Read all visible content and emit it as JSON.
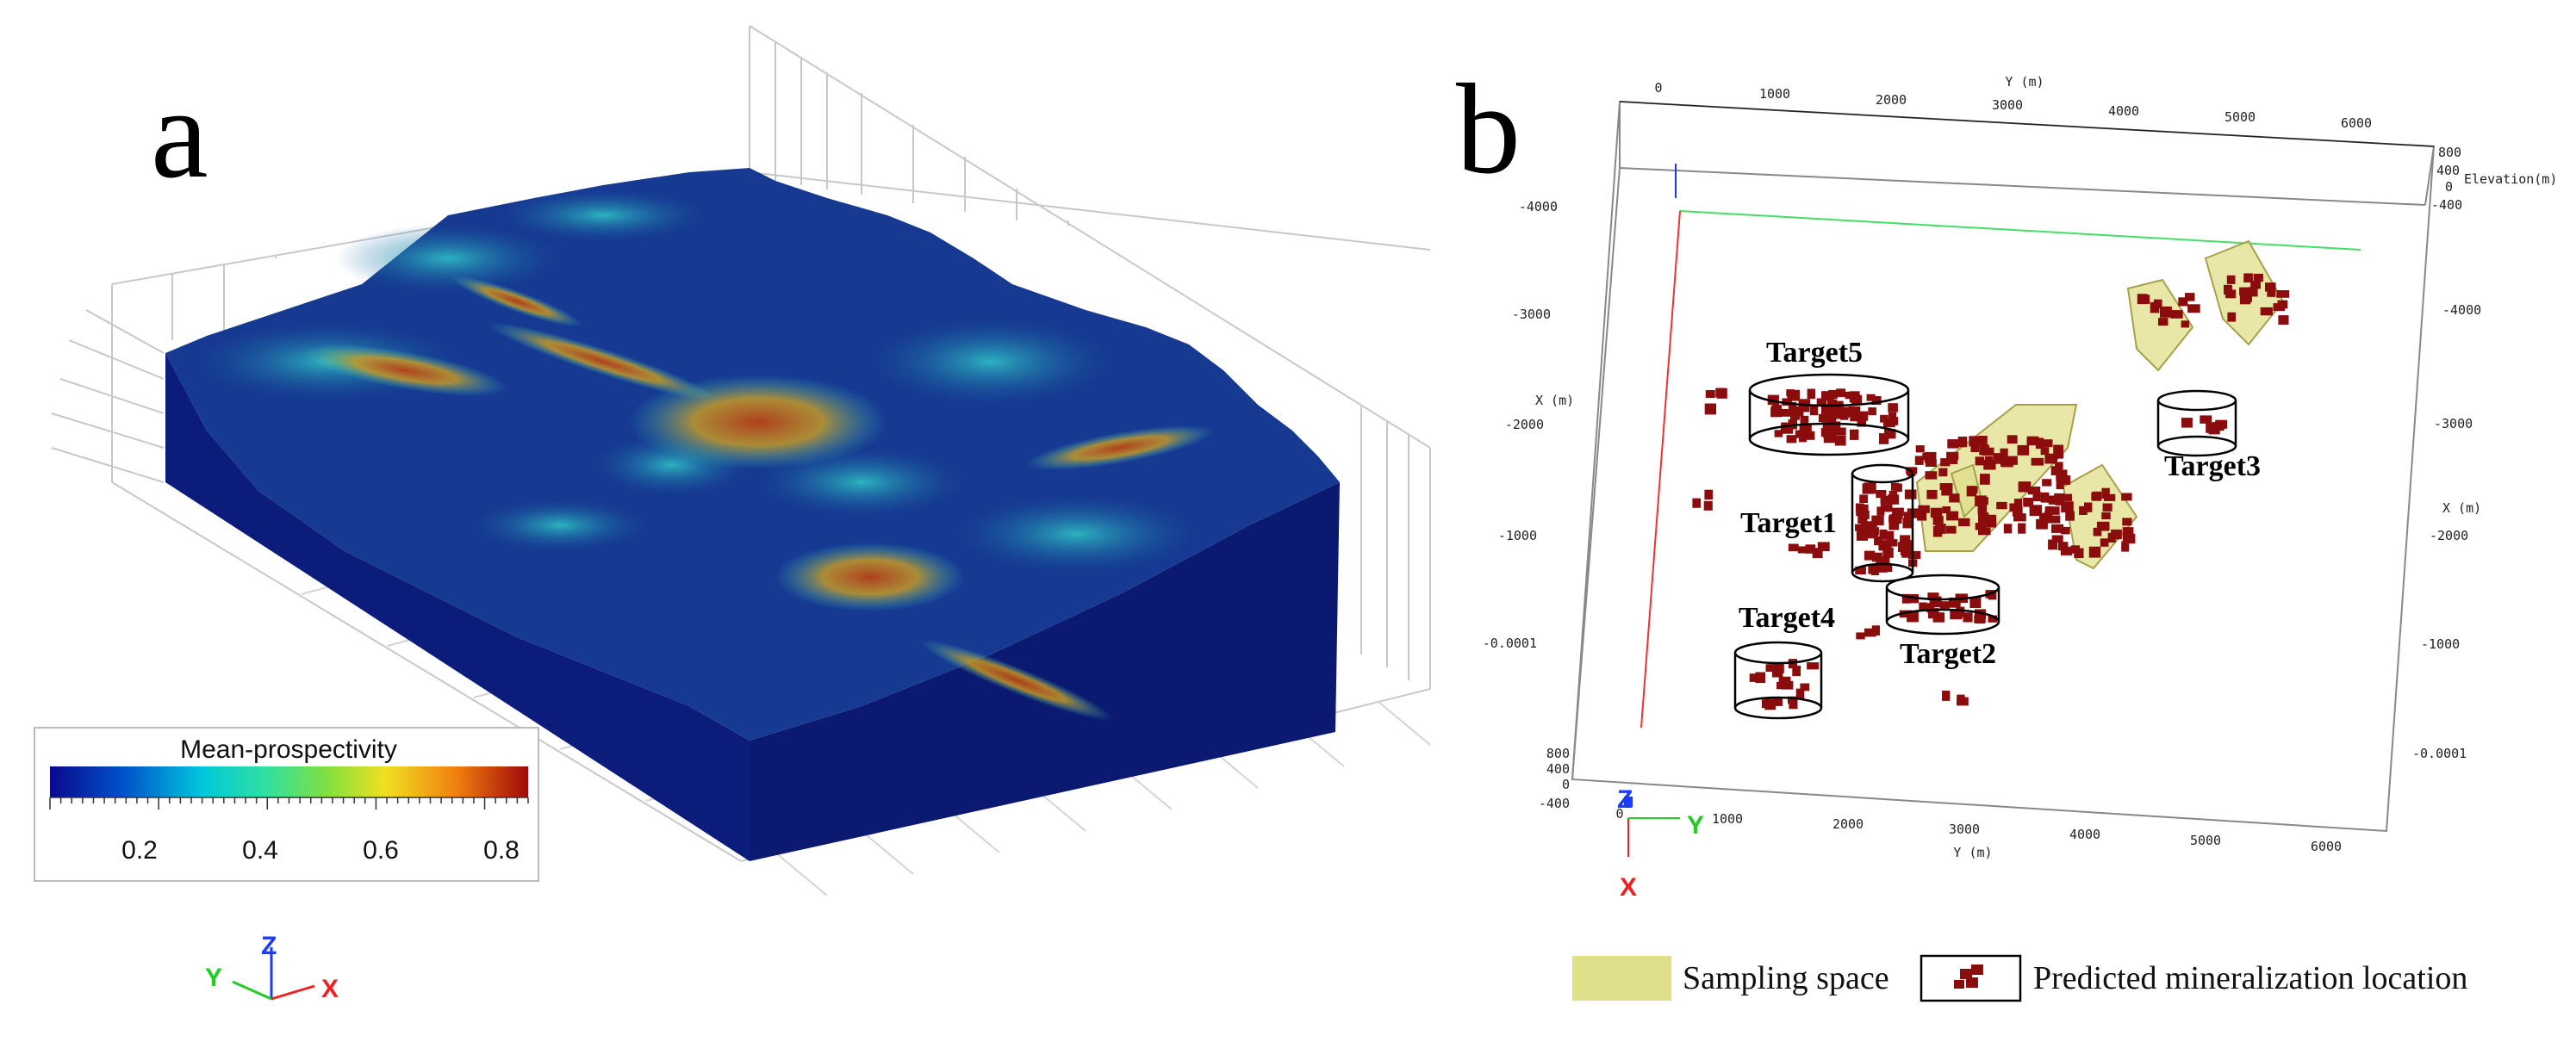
{
  "panel_a": {
    "label": "a",
    "colorbar": {
      "title": "Mean-prospectivity",
      "ticks": [
        "0.2",
        "0.4",
        "0.6",
        "0.8"
      ],
      "colors": [
        "#0a0a8c",
        "#0050c8",
        "#00c8dc",
        "#30e0a0",
        "#80e040",
        "#f0e020",
        "#f08010",
        "#a00808"
      ]
    },
    "triad": {
      "z": "Z",
      "y": "Y",
      "x": "X"
    }
  },
  "panel_b": {
    "label": "b",
    "top_axis": {
      "title": "Y (m)",
      "ticks": [
        "0",
        "1000",
        "2000",
        "3000",
        "4000",
        "5000",
        "6000"
      ]
    },
    "bottom_axis": {
      "title": "Y (m)",
      "ticks": [
        "0",
        "1000",
        "2000",
        "3000",
        "4000",
        "5000",
        "6000"
      ]
    },
    "left_axis": {
      "title": "X (m)",
      "ticks": [
        "-4000",
        "-3000",
        "-2000",
        "-1000",
        "-0.0001"
      ]
    },
    "right_axis": {
      "title": "X (m)",
      "ticks": [
        "-4000",
        "-3000",
        "-2000",
        "-1000",
        "-0.0001"
      ]
    },
    "elevation_axis": {
      "title": "Elevation(m)",
      "ticks": [
        "800",
        "400",
        "0",
        "-400"
      ]
    },
    "bottom_left_elevation": [
      "800",
      "400",
      "0",
      "-400"
    ],
    "targets": [
      "Target5",
      "Target1",
      "Target4",
      "Target2",
      "Target3"
    ],
    "triad": {
      "z": "Z",
      "y": "Y",
      "x": "X"
    },
    "legend": {
      "sampling_space": "Sampling space",
      "predicted": "Predicted mineralization location"
    },
    "colors": {
      "sampling": "#e0df8a",
      "mineral": "#8b0c0c"
    }
  }
}
